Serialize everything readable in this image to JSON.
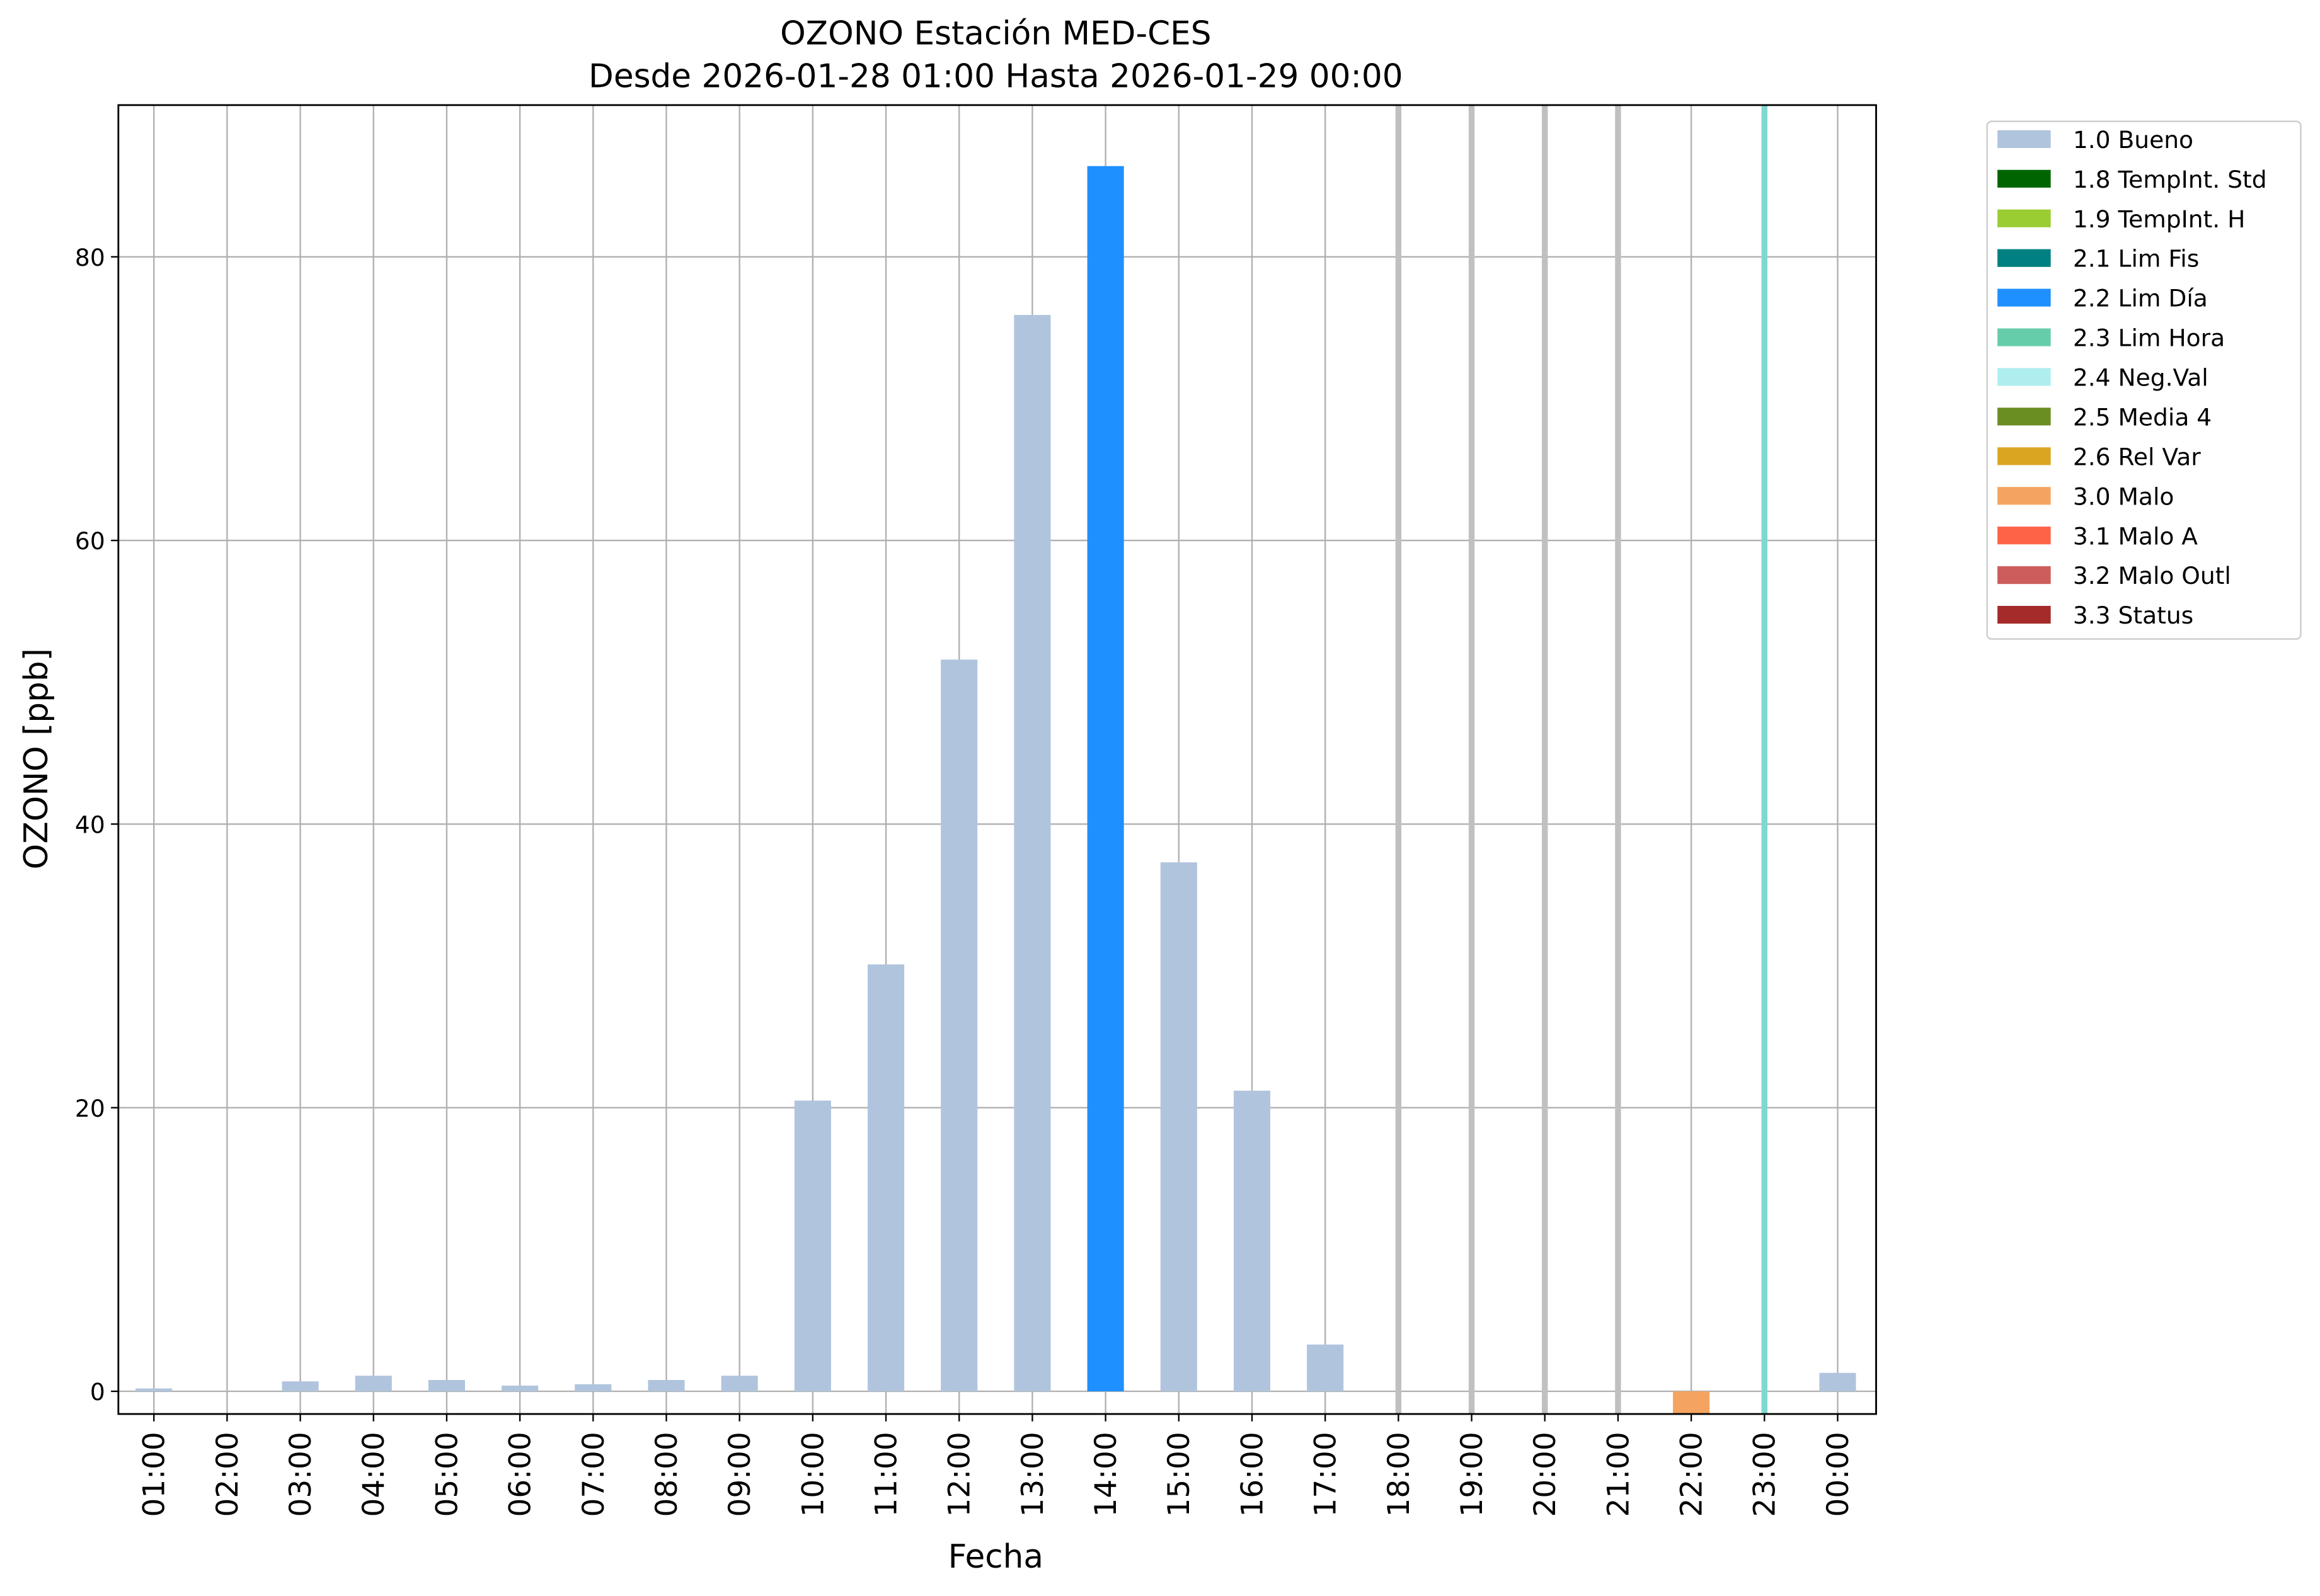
{
  "chart_data": {
    "type": "bar",
    "title": "OZONO Estación MED-CES",
    "subtitle": "Desde 2026-01-28 01:00 Hasta 2026-01-29 00:00",
    "x_label": "Fecha",
    "y_label": "OZONO [ppb]",
    "categories": [
      "01:00",
      "02:00",
      "03:00",
      "04:00",
      "05:00",
      "06:00",
      "07:00",
      "08:00",
      "09:00",
      "10:00",
      "11:00",
      "12:00",
      "13:00",
      "14:00",
      "15:00",
      "16:00",
      "17:00",
      "18:00",
      "19:00",
      "20:00",
      "21:00",
      "22:00",
      "23:00",
      "00:00"
    ],
    "values": [
      0.2,
      0,
      0.7,
      1.1,
      0.8,
      0.4,
      0.5,
      0.8,
      1.1,
      20.5,
      30.1,
      51.6,
      75.9,
      86.4,
      37.3,
      21.2,
      3.3,
      null,
      null,
      null,
      null,
      -1.6,
      null,
      1.3
    ],
    "colors": [
      "#b0c4de",
      "#b0c4de",
      "#b0c4de",
      "#b0c4de",
      "#b0c4de",
      "#b0c4de",
      "#b0c4de",
      "#b0c4de",
      "#b0c4de",
      "#b0c4de",
      "#b0c4de",
      "#b0c4de",
      "#b0c4de",
      "#1e90ff",
      "#b0c4de",
      "#b0c4de",
      "#b0c4de",
      "#c0c0c0",
      "#c0c0c0",
      "#c0c0c0",
      "#c0c0c0",
      "#f4a460",
      "#7fd8d0",
      "#b0c4de"
    ],
    "ylim": [
      -1.6,
      90.7
    ],
    "yticks": [
      0,
      20,
      40,
      60,
      80
    ],
    "grid": true,
    "legend_position": "outside-upper-right",
    "legend": [
      {
        "label": "1.0 Bueno",
        "color": "#b0c4de"
      },
      {
        "label": "1.8 TempInt. Std",
        "color": "#006400"
      },
      {
        "label": "1.9 TempInt. H",
        "color": "#9acd32"
      },
      {
        "label": "2.1 Lim Fis",
        "color": "#008080"
      },
      {
        "label": "2.2 Lim Día",
        "color": "#1e90ff"
      },
      {
        "label": "2.3 Lim Hora",
        "color": "#66cdaa"
      },
      {
        "label": "2.4 Neg.Val",
        "color": "#afeeee"
      },
      {
        "label": "2.5 Media 4",
        "color": "#6b8e23"
      },
      {
        "label": "2.6 Rel Var",
        "color": "#daa520"
      },
      {
        "label": "3.0 Malo",
        "color": "#f4a460"
      },
      {
        "label": "3.1 Malo A",
        "color": "#ff6347"
      },
      {
        "label": "3.2 Malo Outl",
        "color": "#cd5c5c"
      },
      {
        "label": "3.3 Status",
        "color": "#a52a2a"
      }
    ]
  }
}
